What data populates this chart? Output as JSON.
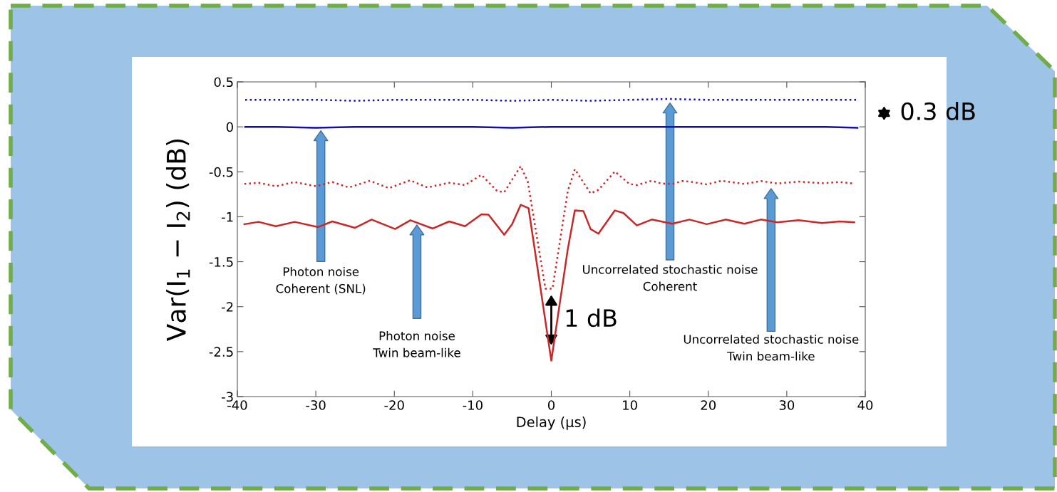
{
  "chart_data": {
    "type": "line",
    "xlabel": "Delay (μs)",
    "ylabel": "Var(I$_{1}$ − I$_{2}$) (dB)",
    "xlim": [
      -40,
      40
    ],
    "xticks": [
      -40,
      -30,
      -20,
      -10,
      0,
      10,
      20,
      30,
      40
    ],
    "ylim": [
      -3,
      0.5
    ],
    "yticks": [
      0.5,
      0,
      -0.5,
      -1,
      -1.5,
      -2,
      -2.5,
      -3
    ],
    "grid": false,
    "series": [
      {
        "color": "#1010a8",
        "line_style": "dotted",
        "x": [
          -39,
          -35,
          -30,
          -25,
          -20,
          -15,
          -10,
          -5,
          0,
          5,
          10,
          15,
          20,
          25,
          30,
          35,
          39
        ],
        "values": [
          0.3,
          0.3,
          0.3,
          0.29,
          0.3,
          0.3,
          0.3,
          0.29,
          0.3,
          0.29,
          0.3,
          0.31,
          0.3,
          0.3,
          0.3,
          0.3,
          0.3
        ]
      },
      {
        "color": "#1010a8",
        "line_style": "solid",
        "x": [
          -39,
          -35,
          -30,
          -25,
          -20,
          -15,
          -10,
          -5,
          0,
          5,
          10,
          15,
          20,
          25,
          30,
          35,
          39
        ],
        "values": [
          0,
          0,
          -0.01,
          0,
          0,
          0,
          0,
          -0.01,
          0,
          0,
          0,
          0,
          0,
          0,
          0,
          0,
          -0.01
        ]
      },
      {
        "color": "#c82828",
        "line_style": "dotted",
        "x": [
          -39.1,
          -37.3,
          -35.1,
          -32.7,
          -30,
          -27.9,
          -25.8,
          -23.1,
          -20.7,
          -18,
          -15.8,
          -13,
          -11,
          -8.9,
          -6.9,
          -6,
          -3.9,
          -3,
          -0.75,
          0.15,
          2.1,
          3,
          5,
          6,
          8.1,
          9.95,
          10.9,
          12.8,
          14,
          15.4,
          16.7,
          17.6,
          19.8,
          21.7,
          24.6,
          26.7,
          28.8,
          31.5,
          34.5,
          36.7,
          38.6
        ],
        "values": [
          -0.635,
          -0.622,
          -0.661,
          -0.614,
          -0.661,
          -0.614,
          -0.674,
          -0.6,
          -0.682,
          -0.595,
          -0.674,
          -0.622,
          -0.648,
          -0.534,
          -0.714,
          -0.727,
          -0.437,
          -0.608,
          -1.8,
          -1.8,
          -0.714,
          -0.471,
          -0.74,
          -0.701,
          -0.497,
          -0.635,
          -0.648,
          -0.6,
          -0.63,
          -0.635,
          -0.603,
          -0.609,
          -0.64,
          -0.6,
          -0.635,
          -0.603,
          -0.63,
          -0.609,
          -0.627,
          -0.614,
          -0.63
        ]
      },
      {
        "color": "#c82828",
        "line_style": "solid",
        "x": [
          -39.1,
          -37.3,
          -35.1,
          -32.7,
          -29.7,
          -27.9,
          -25,
          -22.9,
          -19.9,
          -17.95,
          -15.1,
          -13,
          -11,
          -8.9,
          -8,
          -6,
          -5,
          -3.9,
          -2.9,
          0,
          2.1,
          3,
          4.1,
          5,
          6,
          8.1,
          9.2,
          10.9,
          12.8,
          15.4,
          17.6,
          19.8,
          22.2,
          24.6,
          26.7,
          28.8,
          31.5,
          34.5,
          36.7,
          38.6
        ],
        "values": [
          -1.083,
          -1.057,
          -1.105,
          -1.057,
          -1.115,
          -1.052,
          -1.123,
          -1.031,
          -1.136,
          -1.039,
          -1.131,
          -1.052,
          -1.105,
          -0.973,
          -0.977,
          -1.2,
          -1.083,
          -0.867,
          -0.904,
          -2.6,
          -1.36,
          -0.93,
          -0.938,
          -1.136,
          -1.189,
          -0.93,
          -0.959,
          -1.097,
          -1.031,
          -1.078,
          -1.031,
          -1.083,
          -1.031,
          -1.078,
          -1.031,
          -1.062,
          -1.039,
          -1.07,
          -1.052,
          -1.062
        ]
      }
    ],
    "annotations": [
      "Photon noise\nCoherent (SNL)",
      "Photon noise\nTwin beam-like",
      "Uncorrelated stochastic noise\nCoherent",
      "Uncorrelated stochastic noise\nTwin beam-like",
      "1 dB",
      "0.3 dB"
    ]
  }
}
